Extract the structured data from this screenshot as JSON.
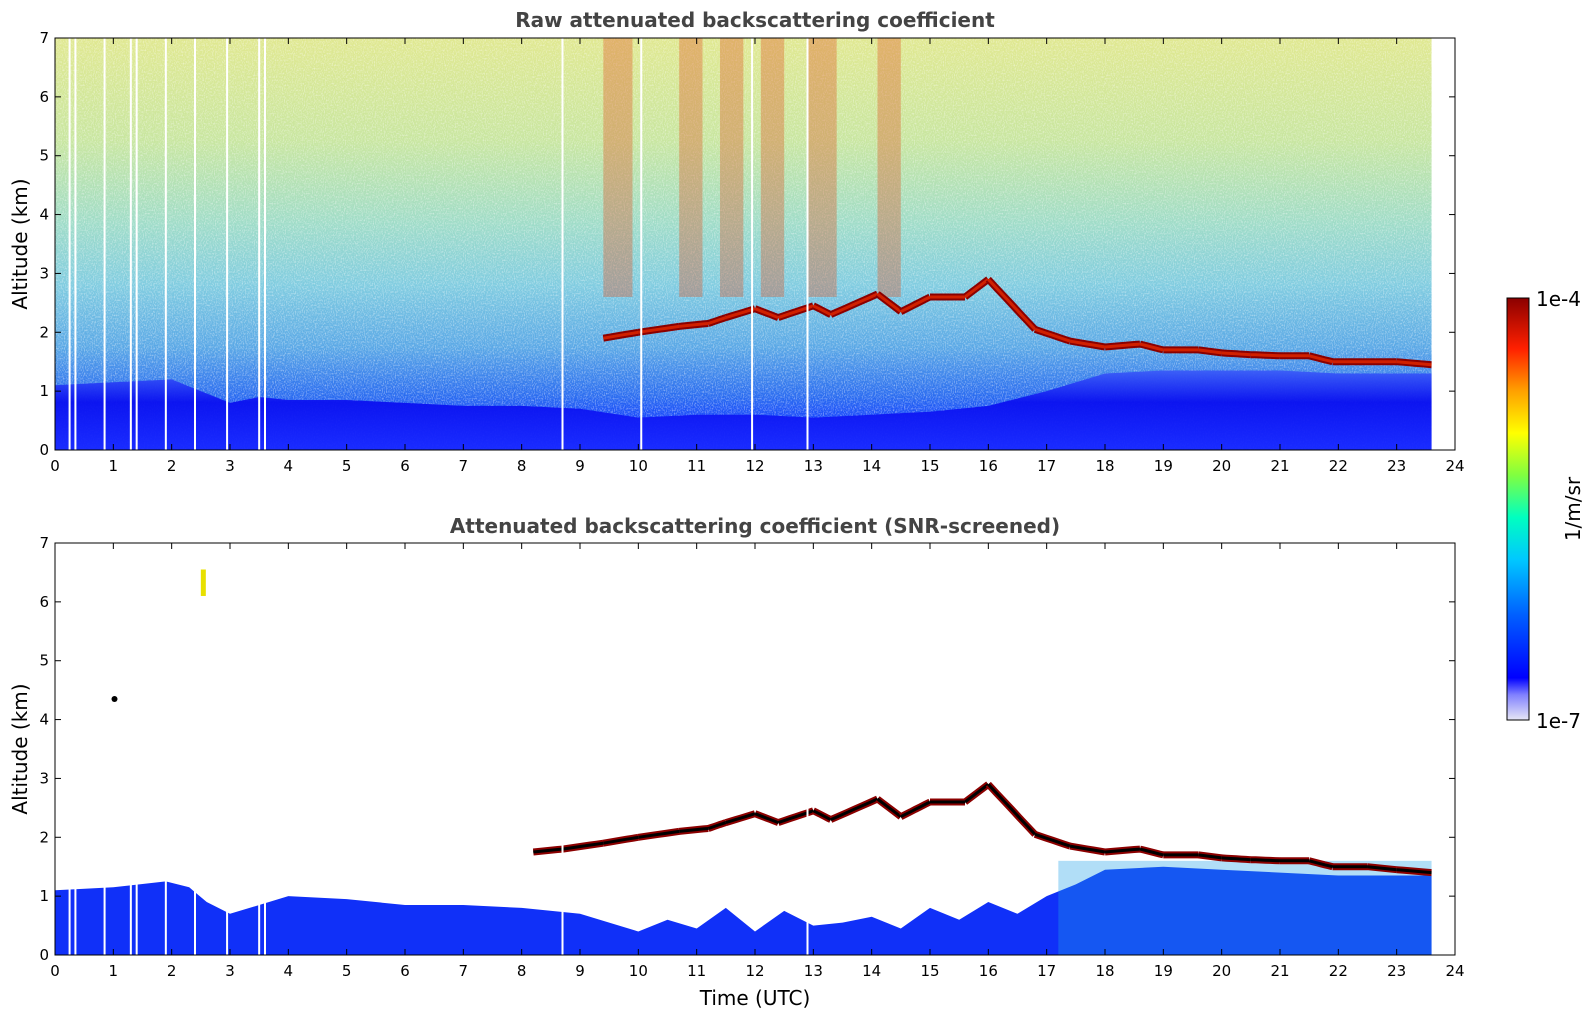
{
  "chart_data": [
    {
      "type": "heatmap",
      "title": "Raw attenuated backscattering coefficient",
      "ylabel": "Altitude (km)",
      "xlabel": "",
      "xlim": [
        0,
        24
      ],
      "ylim": [
        0,
        7
      ],
      "x_ticks": [
        "0",
        "1",
        "2",
        "3",
        "4",
        "5",
        "6",
        "7",
        "8",
        "9",
        "10",
        "11",
        "12",
        "13",
        "14",
        "15",
        "16",
        "17",
        "18",
        "19",
        "20",
        "21",
        "22",
        "23",
        "24"
      ],
      "y_ticks": [
        "0",
        "1",
        "2",
        "3",
        "4",
        "5",
        "6",
        "7"
      ],
      "data_end_hour": 23.6,
      "screened": false,
      "cloud_layer": [
        [
          9.4,
          1.9
        ],
        [
          10.0,
          2.0
        ],
        [
          10.7,
          2.1
        ],
        [
          11.2,
          2.15
        ],
        [
          11.5,
          2.25
        ],
        [
          12.0,
          2.4
        ],
        [
          12.4,
          2.25
        ],
        [
          13.0,
          2.45
        ],
        [
          13.3,
          2.3
        ],
        [
          14.1,
          2.65
        ],
        [
          14.5,
          2.35
        ],
        [
          15.0,
          2.6
        ],
        [
          15.6,
          2.6
        ],
        [
          16.0,
          2.9
        ],
        [
          16.8,
          2.05
        ],
        [
          17.4,
          1.85
        ],
        [
          18.0,
          1.75
        ],
        [
          18.6,
          1.8
        ],
        [
          19.0,
          1.7
        ],
        [
          19.6,
          1.7
        ],
        [
          20.0,
          1.65
        ],
        [
          20.5,
          1.62
        ],
        [
          21.0,
          1.6
        ],
        [
          21.5,
          1.6
        ],
        [
          21.9,
          1.5
        ],
        [
          22.5,
          1.5
        ],
        [
          23.0,
          1.5
        ],
        [
          23.6,
          1.45
        ]
      ],
      "boundary_layer_top": [
        [
          0,
          1.1
        ],
        [
          1,
          1.15
        ],
        [
          2,
          1.2
        ],
        [
          2.5,
          1.0
        ],
        [
          3,
          0.8
        ],
        [
          3.5,
          0.9
        ],
        [
          4,
          0.85
        ],
        [
          5,
          0.85
        ],
        [
          6,
          0.8
        ],
        [
          7,
          0.75
        ],
        [
          8,
          0.75
        ],
        [
          9,
          0.7
        ],
        [
          10,
          0.55
        ],
        [
          11,
          0.6
        ],
        [
          12,
          0.6
        ],
        [
          13,
          0.55
        ],
        [
          14,
          0.6
        ],
        [
          15,
          0.65
        ],
        [
          16,
          0.75
        ],
        [
          17,
          1.0
        ],
        [
          18,
          1.3
        ],
        [
          19,
          1.35
        ],
        [
          20,
          1.35
        ],
        [
          21,
          1.35
        ],
        [
          22,
          1.3
        ],
        [
          23,
          1.3
        ],
        [
          23.6,
          1.3
        ]
      ],
      "data_gaps_hours": [
        0.25,
        0.35,
        0.85,
        1.3,
        1.4,
        1.9,
        2.4,
        2.95,
        3.5,
        3.6,
        8.7,
        10.05,
        11.95,
        12.9
      ]
    },
    {
      "type": "heatmap",
      "title": "Attenuated backscattering coefficient (SNR-screened)",
      "ylabel": "Altitude (km)",
      "xlabel": "Time (UTC)",
      "xlim": [
        0,
        24
      ],
      "ylim": [
        0,
        7
      ],
      "x_ticks": [
        "0",
        "1",
        "2",
        "3",
        "4",
        "5",
        "6",
        "7",
        "8",
        "9",
        "10",
        "11",
        "12",
        "13",
        "14",
        "15",
        "16",
        "17",
        "18",
        "19",
        "20",
        "21",
        "22",
        "23",
        "24"
      ],
      "y_ticks": [
        "0",
        "1",
        "2",
        "3",
        "4",
        "5",
        "6",
        "7"
      ],
      "data_end_hour": 23.6,
      "screened": true,
      "cloud_layer": [
        [
          8.2,
          1.75
        ],
        [
          8.7,
          1.8
        ],
        [
          9.4,
          1.9
        ],
        [
          10.0,
          2.0
        ],
        [
          10.7,
          2.1
        ],
        [
          11.2,
          2.15
        ],
        [
          11.5,
          2.25
        ],
        [
          12.0,
          2.4
        ],
        [
          12.4,
          2.25
        ],
        [
          13.0,
          2.45
        ],
        [
          13.3,
          2.3
        ],
        [
          14.1,
          2.65
        ],
        [
          14.5,
          2.35
        ],
        [
          15.0,
          2.6
        ],
        [
          15.6,
          2.6
        ],
        [
          16.0,
          2.9
        ],
        [
          16.8,
          2.05
        ],
        [
          17.4,
          1.85
        ],
        [
          18.0,
          1.75
        ],
        [
          18.6,
          1.8
        ],
        [
          19.0,
          1.7
        ],
        [
          19.6,
          1.7
        ],
        [
          20.0,
          1.65
        ],
        [
          20.5,
          1.62
        ],
        [
          21.0,
          1.6
        ],
        [
          21.5,
          1.6
        ],
        [
          21.9,
          1.5
        ],
        [
          22.5,
          1.5
        ],
        [
          23.0,
          1.45
        ],
        [
          23.6,
          1.4
        ]
      ],
      "boundary_layer_top": [
        [
          0,
          1.1
        ],
        [
          1,
          1.15
        ],
        [
          1.9,
          1.25
        ],
        [
          2.3,
          1.15
        ],
        [
          2.6,
          0.9
        ],
        [
          3,
          0.7
        ],
        [
          3.5,
          0.85
        ],
        [
          4,
          1.0
        ],
        [
          5,
          0.95
        ],
        [
          6,
          0.85
        ],
        [
          7,
          0.85
        ],
        [
          8,
          0.8
        ],
        [
          9,
          0.7
        ],
        [
          9.5,
          0.55
        ],
        [
          10,
          0.4
        ],
        [
          10.5,
          0.6
        ],
        [
          11,
          0.45
        ],
        [
          11.5,
          0.8
        ],
        [
          12,
          0.4
        ],
        [
          12.5,
          0.75
        ],
        [
          13,
          0.5
        ],
        [
          13.5,
          0.55
        ],
        [
          14,
          0.65
        ],
        [
          14.5,
          0.45
        ],
        [
          15,
          0.8
        ],
        [
          15.5,
          0.6
        ],
        [
          16,
          0.9
        ],
        [
          16.5,
          0.7
        ],
        [
          17,
          1.0
        ],
        [
          17.5,
          1.2
        ],
        [
          18,
          1.45
        ],
        [
          19,
          1.5
        ],
        [
          20,
          1.45
        ],
        [
          21,
          1.4
        ],
        [
          22,
          1.35
        ],
        [
          23,
          1.35
        ],
        [
          23.6,
          1.35
        ]
      ],
      "data_gaps_hours": [
        0.25,
        0.35,
        0.85,
        1.3,
        1.4,
        1.9,
        2.4,
        2.95,
        3.5,
        3.6,
        8.7,
        12.9
      ]
    }
  ],
  "colorbar": {
    "label": "1/m/sr",
    "max_label": "1e-4",
    "min_label": "1e-7",
    "colormap": [
      "#e6e6f5",
      "#0000ff",
      "#00b4ff",
      "#00ffc8",
      "#b4ff00",
      "#ffff00",
      "#ff9600",
      "#ff0000",
      "#8b0000"
    ]
  }
}
